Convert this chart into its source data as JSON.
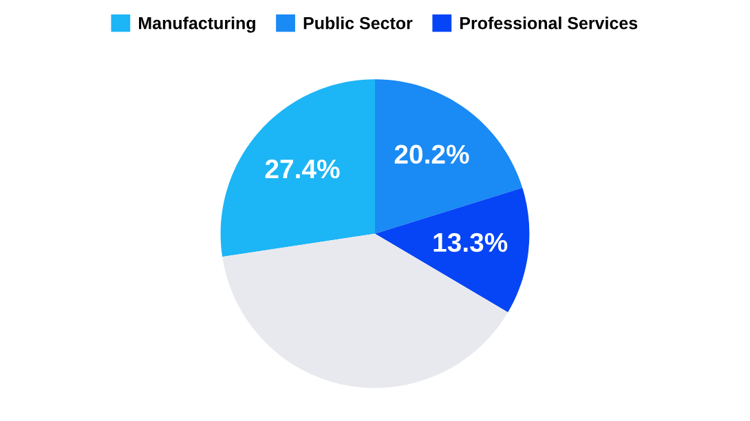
{
  "chart_data": {
    "type": "pie",
    "categories": [
      "Manufacturing",
      "Public Sector",
      "Professional Services",
      null
    ],
    "values": [
      27.4,
      20.2,
      13.3,
      39.1
    ],
    "colors": [
      "#1cb5f5",
      "#1a8af5",
      "#0545f5",
      "#e8e9ee"
    ],
    "value_labels": [
      "27.4%",
      "20.2%",
      "13.3%",
      null
    ],
    "legend": "top"
  }
}
